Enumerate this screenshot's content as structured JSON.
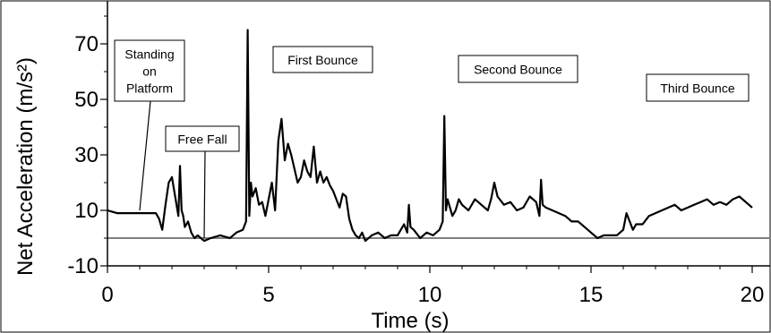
{
  "chart_data": {
    "type": "line",
    "title": "",
    "xlabel": "Time (s)",
    "ylabel": "Net Acceleration (m/s²)",
    "xlim": [
      0,
      20
    ],
    "ylim": [
      -10,
      80
    ],
    "x_ticks": [
      0,
      5,
      10,
      15,
      20
    ],
    "y_ticks": [
      -10,
      10,
      30,
      50,
      70
    ],
    "x_tick_labels": [
      "0",
      "5",
      "10",
      "15",
      "20"
    ],
    "y_tick_labels": [
      "-10",
      "10",
      "30",
      "50",
      "70"
    ],
    "grid": false,
    "baseline": {
      "y": 0,
      "color": "#808080"
    },
    "line_color": "#000000",
    "series": [
      {
        "x": [
          0,
          0.3,
          0.6,
          0.9,
          1.2,
          1.5,
          1.6,
          1.7,
          1.8,
          1.9,
          2.0,
          2.1,
          2.2,
          2.25,
          2.3,
          2.35,
          2.4,
          2.5,
          2.6,
          2.7,
          2.8,
          3.0,
          3.2,
          3.5,
          3.8,
          4.0,
          4.2,
          4.3,
          4.35,
          4.4,
          4.45,
          4.5,
          4.6,
          4.7,
          4.8,
          4.9,
          5.0,
          5.1,
          5.2,
          5.3,
          5.4,
          5.5,
          5.6,
          5.7,
          5.8,
          5.9,
          6.0,
          6.1,
          6.2,
          6.3,
          6.4,
          6.5,
          6.6,
          6.7,
          6.8,
          6.9,
          7.0,
          7.1,
          7.2,
          7.3,
          7.4,
          7.5,
          7.6,
          7.7,
          7.8,
          7.9,
          8.0,
          8.2,
          8.4,
          8.6,
          8.8,
          9.0,
          9.2,
          9.3,
          9.35,
          9.4,
          9.5,
          9.7,
          9.9,
          10.1,
          10.3,
          10.4,
          10.45,
          10.5,
          10.55,
          10.6,
          10.7,
          10.8,
          10.9,
          11.0,
          11.2,
          11.4,
          11.6,
          11.8,
          11.9,
          12.0,
          12.1,
          12.3,
          12.5,
          12.7,
          12.9,
          13.1,
          13.3,
          13.4,
          13.45,
          13.5,
          13.6,
          13.8,
          14.0,
          14.2,
          14.4,
          14.6,
          14.8,
          15.0,
          15.2,
          15.4,
          15.6,
          15.8,
          16.0,
          16.1,
          16.2,
          16.3,
          16.4,
          16.6,
          16.8,
          17.0,
          17.2,
          17.4,
          17.6,
          17.8,
          18.0,
          18.2,
          18.4,
          18.6,
          18.8,
          19.0,
          19.2,
          19.4,
          19.6,
          19.8,
          20.0
        ],
        "y": [
          10,
          9,
          9,
          9,
          9,
          9,
          7,
          3,
          12,
          20,
          22,
          15,
          8,
          26,
          10,
          8,
          4,
          6,
          2,
          0,
          1,
          -1,
          0,
          1,
          0,
          2,
          3,
          6,
          75,
          8,
          20,
          15,
          18,
          12,
          13,
          8,
          14,
          20,
          10,
          35,
          43,
          28,
          34,
          30,
          25,
          20,
          22,
          28,
          24,
          22,
          33,
          20,
          24,
          20,
          22,
          19,
          17,
          14,
          11,
          16,
          15,
          7,
          3,
          1,
          0,
          2,
          -1,
          1,
          2,
          0,
          1,
          1,
          5,
          2,
          12,
          4,
          3,
          0,
          2,
          1,
          3,
          6,
          44,
          10,
          14,
          12,
          8,
          10,
          14,
          12,
          10,
          14,
          12,
          10,
          14,
          20,
          15,
          12,
          13,
          10,
          11,
          15,
          13,
          8,
          21,
          12,
          11,
          10,
          9,
          8,
          6,
          6,
          4,
          2,
          0,
          1,
          1,
          1,
          3,
          9,
          6,
          3,
          5,
          5,
          8,
          9,
          10,
          11,
          12,
          10,
          11,
          12,
          13,
          14,
          12,
          13,
          12,
          14,
          15,
          13,
          11
        ]
      }
    ],
    "annotations": [
      {
        "lines": [
          "Standing",
          "on",
          "Platform"
        ],
        "x": 1.0,
        "y": 10
      },
      {
        "lines": [
          "Free Fall"
        ],
        "x": 3.0,
        "y": 0
      },
      {
        "lines": [
          "First Bounce"
        ],
        "x": null,
        "y": null
      },
      {
        "lines": [
          "Second Bounce"
        ],
        "x": null,
        "y": null
      },
      {
        "lines": [
          "Third Bounce"
        ],
        "x": null,
        "y": null
      }
    ]
  }
}
